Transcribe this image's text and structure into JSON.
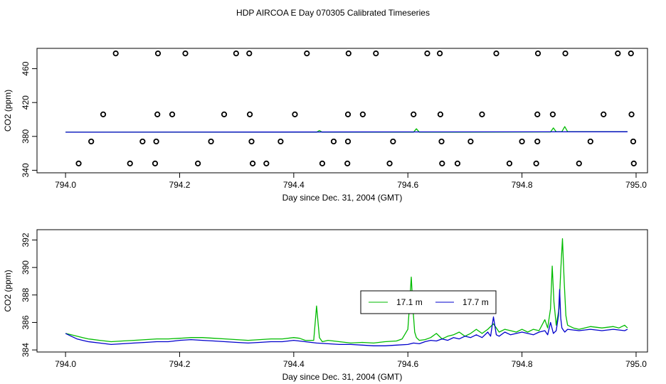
{
  "title": "HDP AIRCOA E  Day 070305  Calibrated Timeseries",
  "colors": {
    "green": "#00bb00",
    "blue": "#0000cc"
  },
  "chart_data": [
    {
      "type": "scatter",
      "xlabel": "Day since Dec. 31, 2004 (GMT)",
      "ylabel": "CO2 (ppm)",
      "xlim": [
        793.95,
        795.02
      ],
      "ylim": [
        337,
        484
      ],
      "xticks": [
        "794.0",
        "794.2",
        "794.4",
        "794.6",
        "794.8",
        "795.0"
      ],
      "xtick_values": [
        794.0,
        794.2,
        794.4,
        794.6,
        794.8,
        795.0
      ],
      "yticks": [
        "340",
        "380",
        "420",
        "460"
      ],
      "ytick_values": [
        340,
        380,
        420,
        460
      ],
      "points_x": [
        794.088,
        794.162,
        794.21,
        794.299,
        794.322,
        794.423,
        794.496,
        794.544,
        794.634,
        794.656,
        794.755,
        794.828,
        794.876,
        794.968,
        794.991,
        794.066,
        794.161,
        794.187,
        794.278,
        794.323,
        794.402,
        794.495,
        794.521,
        794.61,
        794.657,
        794.73,
        794.827,
        794.854,
        794.943,
        794.992,
        794.045,
        794.135,
        794.159,
        794.255,
        794.326,
        794.377,
        794.47,
        794.495,
        794.574,
        794.659,
        794.71,
        794.8,
        794.827,
        794.92,
        794.995,
        794.023,
        794.113,
        794.157,
        794.232,
        794.328,
        794.352,
        794.45,
        794.494,
        794.568,
        794.66,
        794.687,
        794.778,
        794.825,
        794.9,
        794.996
      ],
      "points_y": [
        478,
        478,
        478,
        478,
        478,
        478,
        478,
        478,
        478,
        478,
        478,
        478,
        478,
        478,
        478,
        406,
        406,
        406,
        406,
        406,
        406,
        406,
        406,
        406,
        406,
        406,
        406,
        406,
        406,
        406,
        374,
        374,
        374,
        374,
        374,
        374,
        374,
        374,
        374,
        374,
        374,
        374,
        374,
        374,
        374,
        348,
        348,
        348,
        348,
        348,
        348,
        348,
        348,
        348,
        348,
        348,
        348,
        348,
        348,
        348
      ],
      "series": [
        {
          "color": "green",
          "x": [
            794.0,
            794.44,
            794.445,
            794.45,
            794.61,
            794.615,
            794.62,
            794.85,
            794.855,
            794.86,
            794.87,
            794.875,
            794.88,
            794.985
          ],
          "y": [
            385.0,
            385.0,
            387.0,
            385.0,
            385.0,
            389.0,
            385.0,
            385.2,
            390.0,
            385.4,
            385.6,
            391.5,
            385.6,
            385.6
          ]
        },
        {
          "color": "blue",
          "x": [
            794.0,
            794.985
          ],
          "y": [
            385.0,
            385.5
          ]
        }
      ]
    },
    {
      "type": "line",
      "xlabel": "Day since Dec. 31, 2004 (GMT)",
      "ylabel": "CO2 (ppm)",
      "xlim": [
        793.95,
        795.02
      ],
      "ylim": [
        383.85,
        392.75
      ],
      "xticks": [
        "794.0",
        "794.2",
        "794.4",
        "794.6",
        "794.8",
        "795.0"
      ],
      "xtick_values": [
        794.0,
        794.2,
        794.4,
        794.6,
        794.8,
        795.0
      ],
      "yticks": [
        "384",
        "386",
        "388",
        "390",
        "392"
      ],
      "ytick_values": [
        384,
        386,
        388,
        390,
        392
      ],
      "legend": "center",
      "series": [
        {
          "name": "17.1 m",
          "color": "green",
          "x": [
            794.0,
            794.01,
            794.02,
            794.03,
            794.04,
            794.06,
            794.08,
            794.1,
            794.12,
            794.14,
            794.16,
            794.18,
            794.2,
            794.22,
            794.24,
            794.26,
            794.28,
            794.3,
            794.32,
            794.34,
            794.36,
            794.38,
            794.4,
            794.41,
            794.42,
            794.435,
            794.44,
            794.445,
            794.45,
            794.46,
            794.48,
            794.5,
            794.52,
            794.54,
            794.56,
            794.58,
            794.59,
            794.6,
            794.603,
            794.606,
            794.609,
            794.612,
            794.615,
            794.62,
            794.63,
            794.64,
            794.65,
            794.66,
            794.67,
            794.68,
            794.69,
            794.7,
            794.71,
            794.72,
            794.73,
            794.74,
            794.75,
            794.76,
            794.77,
            794.78,
            794.79,
            794.8,
            794.81,
            794.82,
            794.83,
            794.84,
            794.845,
            794.85,
            794.853,
            794.856,
            794.86,
            794.865,
            794.868,
            794.871,
            794.874,
            794.877,
            794.88,
            794.89,
            794.9,
            794.92,
            794.94,
            794.96,
            794.97,
            794.98,
            794.985
          ],
          "y": [
            385.2,
            385.1,
            385.0,
            384.9,
            384.8,
            384.7,
            384.6,
            384.65,
            384.7,
            384.75,
            384.8,
            384.8,
            384.85,
            384.9,
            384.9,
            384.85,
            384.8,
            384.75,
            384.7,
            384.75,
            384.8,
            384.8,
            384.9,
            384.85,
            384.7,
            384.7,
            387.2,
            384.9,
            384.6,
            384.7,
            384.6,
            384.5,
            384.55,
            384.5,
            384.6,
            384.65,
            384.8,
            385.5,
            387.3,
            389.3,
            387.0,
            385.3,
            384.9,
            384.7,
            384.75,
            384.9,
            385.2,
            384.8,
            385.0,
            385.1,
            385.3,
            385.0,
            385.2,
            385.5,
            385.2,
            385.5,
            385.9,
            385.3,
            385.5,
            385.4,
            385.3,
            385.5,
            385.3,
            385.5,
            385.4,
            386.2,
            385.6,
            387.0,
            390.1,
            387.5,
            385.8,
            387.0,
            389.8,
            392.1,
            389.0,
            386.5,
            385.8,
            385.6,
            385.5,
            385.7,
            385.6,
            385.7,
            385.6,
            385.8,
            385.6
          ]
        },
        {
          "name": "17.7 m",
          "color": "blue",
          "x": [
            794.0,
            794.01,
            794.02,
            794.03,
            794.04,
            794.06,
            794.08,
            794.1,
            794.12,
            794.14,
            794.16,
            794.18,
            794.2,
            794.22,
            794.24,
            794.26,
            794.28,
            794.3,
            794.32,
            794.34,
            794.36,
            794.38,
            794.4,
            794.42,
            794.44,
            794.46,
            794.48,
            794.5,
            794.52,
            794.54,
            794.56,
            794.58,
            794.6,
            794.61,
            794.62,
            794.63,
            794.64,
            794.65,
            794.66,
            794.67,
            794.68,
            794.69,
            794.7,
            794.71,
            794.72,
            794.73,
            794.74,
            794.745,
            794.75,
            794.755,
            794.76,
            794.77,
            794.78,
            794.79,
            794.8,
            794.81,
            794.82,
            794.83,
            794.84,
            794.845,
            794.85,
            794.855,
            794.86,
            794.864,
            794.866,
            794.868,
            794.87,
            794.875,
            794.88,
            794.9,
            794.92,
            794.94,
            794.96,
            794.98,
            794.985
          ],
          "y": [
            385.2,
            385.0,
            384.8,
            384.7,
            384.6,
            384.5,
            384.4,
            384.45,
            384.5,
            384.55,
            384.6,
            384.6,
            384.7,
            384.75,
            384.7,
            384.65,
            384.6,
            384.55,
            384.5,
            384.55,
            384.6,
            384.6,
            384.7,
            384.6,
            384.5,
            384.45,
            384.4,
            384.4,
            384.35,
            384.3,
            384.3,
            384.35,
            384.4,
            384.5,
            384.45,
            384.6,
            384.7,
            384.65,
            384.8,
            384.7,
            384.9,
            384.8,
            385.0,
            384.9,
            385.1,
            384.9,
            385.3,
            385.0,
            386.4,
            385.1,
            385.0,
            385.3,
            385.1,
            385.2,
            385.3,
            385.2,
            385.1,
            385.3,
            385.4,
            385.1,
            386.0,
            385.2,
            385.4,
            386.5,
            388.4,
            386.3,
            385.6,
            385.3,
            385.5,
            385.4,
            385.5,
            385.4,
            385.5,
            385.4,
            385.5
          ]
        }
      ]
    }
  ]
}
